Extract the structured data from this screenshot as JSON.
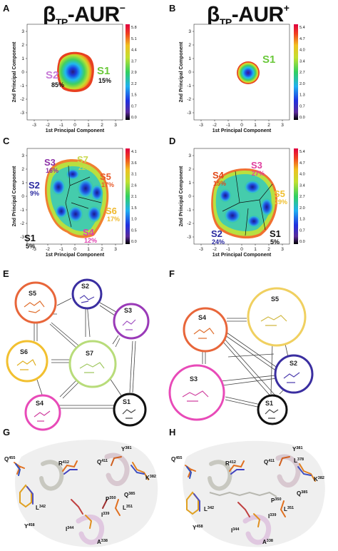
{
  "headers": {
    "left": {
      "base": "β",
      "sub": "TP",
      "rest": "-AUR",
      "sup": "−"
    },
    "right": {
      "base": "β",
      "sub": "TP",
      "rest": "-AUR",
      "sup": "+"
    }
  },
  "panel_labels": [
    "A",
    "B",
    "C",
    "D",
    "E",
    "F",
    "G",
    "H"
  ],
  "axes": {
    "xlabel": "1st Principal Component",
    "ylabel": "2nd Principal Component",
    "x_ticks": [
      "-3",
      "-2",
      "-1",
      "0",
      "1",
      "2",
      "3"
    ],
    "y_ticks": [
      "3",
      "2",
      "1",
      "0",
      "-1",
      "-2",
      "-3"
    ]
  },
  "colorbars": {
    "A": [
      "5.8",
      "5.1",
      "4.4",
      "3.7",
      "2.9",
      "2.2",
      "1.5",
      "0.7",
      "0.0"
    ],
    "B": [
      "5.4",
      "4.7",
      "4.0",
      "3.4",
      "2.7",
      "2.0",
      "1.3",
      "0.7",
      "0.0"
    ],
    "C": [
      "4.1",
      "3.6",
      "3.1",
      "2.6",
      "2.1",
      "1.5",
      "1.0",
      "0.5",
      "0.0"
    ],
    "D": [
      "5.4",
      "4.7",
      "4.0",
      "3.4",
      "2.7",
      "2.0",
      "1.3",
      "0.7",
      "0.0"
    ]
  },
  "panelA": {
    "states": [
      {
        "name": "S2",
        "pct": "85%",
        "color": "#c77ad6"
      },
      {
        "name": "S1",
        "pct": "15%",
        "color": "#6ac83a"
      }
    ]
  },
  "panelB": {
    "states": [
      {
        "name": "S1",
        "pct": "",
        "color": "#6ac83a"
      }
    ]
  },
  "panelC": {
    "states": [
      {
        "name": "S3",
        "pct": "16%",
        "color": "#8b2fa6"
      },
      {
        "name": "S7",
        "pct": "22%",
        "color": "#c9d84a"
      },
      {
        "name": "S2",
        "pct": "9%",
        "color": "#2a2aa0"
      },
      {
        "name": "S5",
        "pct": "17%",
        "color": "#e85a2a"
      },
      {
        "name": "S6",
        "pct": "17%",
        "color": "#f0b82a"
      },
      {
        "name": "S1",
        "pct": "5%",
        "color": "#111111"
      },
      {
        "name": "S4",
        "pct": "12%",
        "color": "#e040b0"
      }
    ]
  },
  "panelD": {
    "states": [
      {
        "name": "S4",
        "pct": "15%",
        "color": "#e04a1a"
      },
      {
        "name": "S3",
        "pct": "27%",
        "color": "#e040a0"
      },
      {
        "name": "S5",
        "pct": "29%",
        "color": "#f0c030"
      },
      {
        "name": "S2",
        "pct": "24%",
        "color": "#2a2aa0"
      },
      {
        "name": "S1",
        "pct": "5%",
        "color": "#111111"
      }
    ]
  },
  "networkE": {
    "nodes": [
      {
        "name": "S5",
        "color": "#e8663a"
      },
      {
        "name": "S2",
        "color": "#3a2ea0"
      },
      {
        "name": "S3",
        "color": "#9a3ab8"
      },
      {
        "name": "S6",
        "color": "#f2c030"
      },
      {
        "name": "S7",
        "color": "#b8dc7a"
      },
      {
        "name": "S4",
        "color": "#e84ab8"
      },
      {
        "name": "S1",
        "color": "#111111"
      }
    ]
  },
  "networkF": {
    "nodes": [
      {
        "name": "S5",
        "color": "#f0d060"
      },
      {
        "name": "S4",
        "color": "#e8663a"
      },
      {
        "name": "S2",
        "color": "#3a2ea0"
      },
      {
        "name": "S3",
        "color": "#e84ab8"
      },
      {
        "name": "S1",
        "color": "#111111"
      }
    ]
  },
  "residuesG": [
    {
      "name": "Q",
      "sup": "455"
    },
    {
      "name": "R",
      "sup": "412"
    },
    {
      "name": "Y",
      "sup": "381"
    },
    {
      "name": "Q",
      "sup": "411"
    },
    {
      "name": "L",
      "sup": "342"
    },
    {
      "name": "K",
      "sup": "382"
    },
    {
      "name": "P",
      "sup": "350"
    },
    {
      "name": "Q",
      "sup": "385"
    },
    {
      "name": "L",
      "sup": "351"
    },
    {
      "name": "Y",
      "sup": "458"
    },
    {
      "name": "I",
      "sup": "339"
    },
    {
      "name": "I",
      "sup": "344"
    },
    {
      "name": "A",
      "sup": "338"
    }
  ],
  "residuesH": [
    {
      "name": "Q",
      "sup": "455"
    },
    {
      "name": "R",
      "sup": "412"
    },
    {
      "name": "Q",
      "sup": "411"
    },
    {
      "name": "Y",
      "sup": "381"
    },
    {
      "name": "L",
      "sup": "378"
    },
    {
      "name": "K",
      "sup": "382"
    },
    {
      "name": "Q",
      "sup": "385"
    },
    {
      "name": "L",
      "sup": "342"
    },
    {
      "name": "P",
      "sup": "350"
    },
    {
      "name": "L",
      "sup": "351"
    },
    {
      "name": "Y",
      "sup": "458"
    },
    {
      "name": "I",
      "sup": "339"
    },
    {
      "name": "I",
      "sup": "344"
    },
    {
      "name": "A",
      "sup": "338"
    }
  ]
}
